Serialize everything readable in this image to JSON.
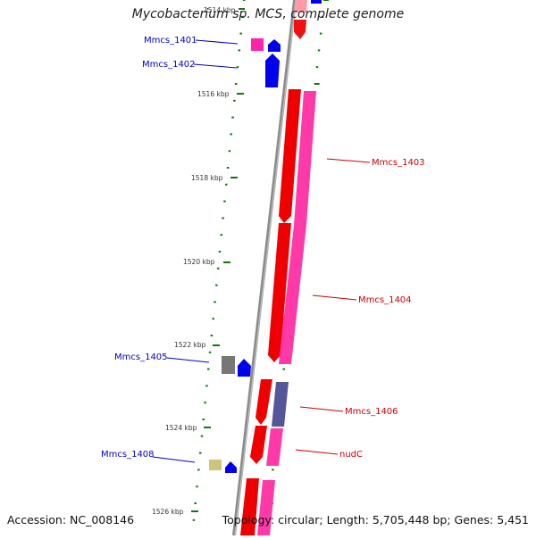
{
  "title": "Mycobacterium sp. MCS, complete genome",
  "footer": {
    "accession": "Accession: NC_008146",
    "topology": "Topology: circular; Length: 5,705,448 bp; Genes: 5,451"
  },
  "colors": {
    "forward_strand_gene": "#ff0000",
    "forward_strand_cds": "#ff3aa0",
    "reverse_strand_gene": "#0000ff",
    "other_feature_pink": "#ff55aa",
    "pseudo_gray": "#777777",
    "khaki": "#cdc67a",
    "slate": "#555599",
    "axis_gray": "#888888",
    "ticks": "#117711",
    "label_blue": "#0000cc",
    "label_red": "#cc0000"
  },
  "kbp_ticks": [
    "1514 kbp",
    "1516 kbp",
    "1518 kbp",
    "1520 kbp",
    "1522 kbp",
    "1524 kbp",
    "1526 kbp"
  ],
  "gene_labels": [
    {
      "name": "Mmcs_1401",
      "color": "blue"
    },
    {
      "name": "Mmcs_1402",
      "color": "blue"
    },
    {
      "name": "Mmcs_1403",
      "color": "red"
    },
    {
      "name": "Mmcs_1404",
      "color": "red"
    },
    {
      "name": "Mmcs_1405",
      "color": "blue"
    },
    {
      "name": "Mmcs_1406",
      "color": "red"
    },
    {
      "name": "Mmcs_1408",
      "color": "blue"
    },
    {
      "name": "nudC",
      "color": "red"
    }
  ]
}
